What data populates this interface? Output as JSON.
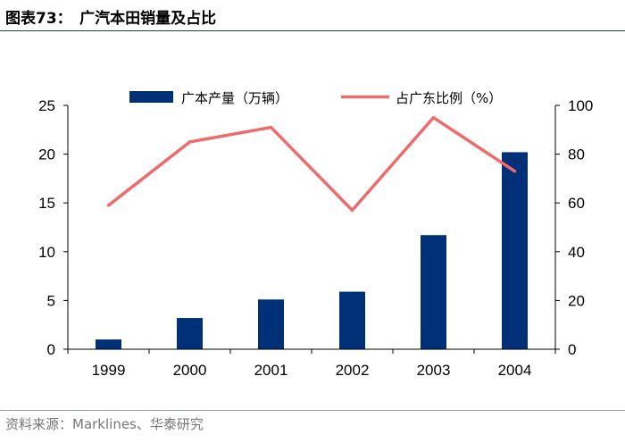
{
  "figure": {
    "title": "图表73：　广汽本田销量及占比",
    "source": "资料来源：Marklines、华泰研究"
  },
  "colors": {
    "bar": "#003078",
    "line": "#ef6b6b",
    "axis": "#000000",
    "title_rule": "#1f3b73"
  },
  "chart_data": {
    "type": "bar+line",
    "categories": [
      "1999",
      "2000",
      "2001",
      "2002",
      "2003",
      "2004"
    ],
    "series": [
      {
        "name": "广本产量（万辆）",
        "type": "bar",
        "axis": "left",
        "values": [
          1.0,
          3.2,
          5.1,
          5.9,
          11.7,
          20.2
        ]
      },
      {
        "name": "占广东比例（%）",
        "type": "line",
        "axis": "right",
        "values": [
          59,
          85,
          91,
          57,
          95,
          73
        ]
      }
    ],
    "y_left": {
      "range": [
        0,
        25
      ],
      "ticks": [
        "0",
        "5",
        "10",
        "15",
        "20",
        "25"
      ]
    },
    "y_right": {
      "range": [
        0,
        100
      ],
      "ticks": [
        "0",
        "20",
        "40",
        "60",
        "80",
        "100"
      ]
    },
    "legend_position": "top-center",
    "grid": false
  }
}
